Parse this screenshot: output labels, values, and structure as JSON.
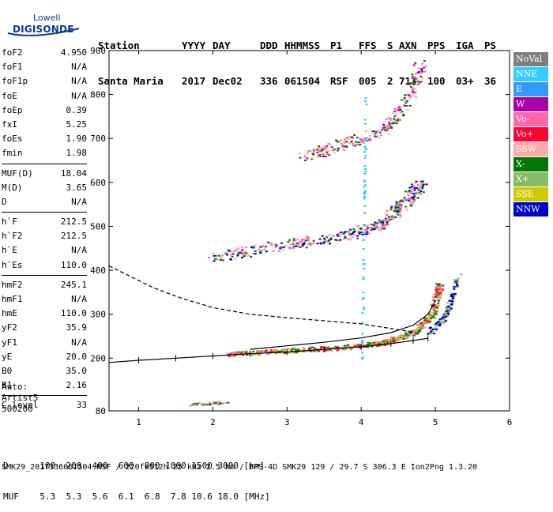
{
  "logo": {
    "line1": "Lowell",
    "line2": "DIGISONDE"
  },
  "header": {
    "labels": [
      "Station",
      "YYYY",
      "DAY",
      "DDD",
      "HHMMSS",
      "P1",
      "FFS",
      "S",
      "AXN",
      "PPS",
      "IGA",
      "PS"
    ],
    "values": [
      "Santa Maria",
      "2017",
      "Dec02",
      "336",
      "061504",
      "RSF",
      "005",
      "2",
      "713",
      "100",
      "03+",
      "36"
    ]
  },
  "params": {
    "group1": [
      [
        "foF2",
        "4.950"
      ],
      [
        "foF1",
        "N/A"
      ],
      [
        "foF1p",
        "N/A"
      ],
      [
        "foE",
        "N/A"
      ],
      [
        "foEp",
        "0.39"
      ],
      [
        "fxI",
        "5.25"
      ],
      [
        "foEs",
        "1.90"
      ],
      [
        "fmin",
        "1.98"
      ]
    ],
    "group2": [
      [
        "MUF(D)",
        "18.04"
      ],
      [
        "M(D)",
        "3.65"
      ],
      [
        "D",
        "N/A"
      ]
    ],
    "group3": [
      [
        "h`F",
        "212.5"
      ],
      [
        "h`F2",
        "212.5"
      ],
      [
        "h`E",
        "N/A"
      ],
      [
        "h`Es",
        "110.0"
      ]
    ],
    "group4": [
      [
        "hmF2",
        "245.1"
      ],
      [
        "hmF1",
        "N/A"
      ],
      [
        "hmE",
        "110.0"
      ],
      [
        "yF2",
        "35.9"
      ],
      [
        "yF1",
        "N/A"
      ],
      [
        "yE",
        "20.0"
      ],
      [
        "B0",
        "35.0"
      ],
      [
        "B1",
        "2.16"
      ]
    ],
    "group5": [
      [
        "C-level",
        "33"
      ]
    ]
  },
  "auto": {
    "line1": "Auto:",
    "line2": "Artist5",
    "line3": "500200"
  },
  "legend": [
    {
      "label": "NoVal",
      "color": "#7f7f7f"
    },
    {
      "label": "NNE",
      "color": "#33ccff"
    },
    {
      "label": "E",
      "color": "#3399ff"
    },
    {
      "label": "W",
      "color": "#aa00aa"
    },
    {
      "label": "Vo-",
      "color": "#ff66aa"
    },
    {
      "label": "Vo+",
      "color": "#ff0033"
    },
    {
      "label": "SSW",
      "color": "#ffaaaa"
    },
    {
      "label": "X-",
      "color": "#007700"
    },
    {
      "label": "X+",
      "color": "#88bb66"
    },
    {
      "label": "SSE",
      "color": "#cccc00"
    },
    {
      "label": "NNW",
      "color": "#0000cc"
    }
  ],
  "bottom": {
    "d_row": "D      100  200  400  600  800 1000 1500 3000 [km]",
    "muf_row": "MUF    5.3  5.3  5.6  6.1  6.8  7.8 10.6 18.0 [MHz]"
  },
  "footer": "SMK29_2017336061504.RSF / 220fx512h 25 kHz 2.5 km / DPS-4D SMK29 129 / 29.7 S 306.3 E Ion2Png 1.3.20",
  "chart_data": {
    "type": "scatter",
    "x_ticks": [
      "1",
      "2",
      "3",
      "4",
      "5",
      "6"
    ],
    "y_ticks": [
      "80",
      "200",
      "300",
      "400",
      "500",
      "600",
      "700",
      "800",
      "900"
    ],
    "xlim": [
      0.6,
      6.0
    ],
    "ylim": [
      80,
      900
    ],
    "x_unit": "MHz",
    "y_unit": "km",
    "series": [
      {
        "color": "#000000",
        "points": [
          [
            0.6,
            410
          ],
          [
            0.9,
            385
          ],
          [
            1.2,
            360
          ],
          [
            1.6,
            335
          ],
          [
            2.0,
            315
          ],
          [
            2.5,
            300
          ],
          [
            3.0,
            292
          ],
          [
            3.5,
            285
          ],
          [
            4.0,
            278
          ],
          [
            4.3,
            270
          ],
          [
            4.6,
            262
          ],
          [
            4.8,
            255
          ]
        ]
      },
      {
        "color": "#000000",
        "points": [
          [
            0.6,
            190
          ],
          [
            1.0,
            195
          ],
          [
            1.5,
            200
          ],
          [
            2.0,
            205
          ],
          [
            2.5,
            210
          ],
          [
            3.0,
            214
          ],
          [
            3.5,
            220
          ],
          [
            4.0,
            226
          ],
          [
            4.4,
            233
          ],
          [
            4.7,
            240
          ],
          [
            4.9,
            245
          ]
        ]
      },
      {
        "color": "#000000",
        "points": [
          [
            2.5,
            220
          ],
          [
            3.0,
            228
          ],
          [
            3.5,
            236
          ],
          [
            4.0,
            246
          ],
          [
            4.4,
            258
          ],
          [
            4.7,
            275
          ],
          [
            4.9,
            300
          ],
          [
            5.0,
            330
          ]
        ]
      }
    ]
  }
}
